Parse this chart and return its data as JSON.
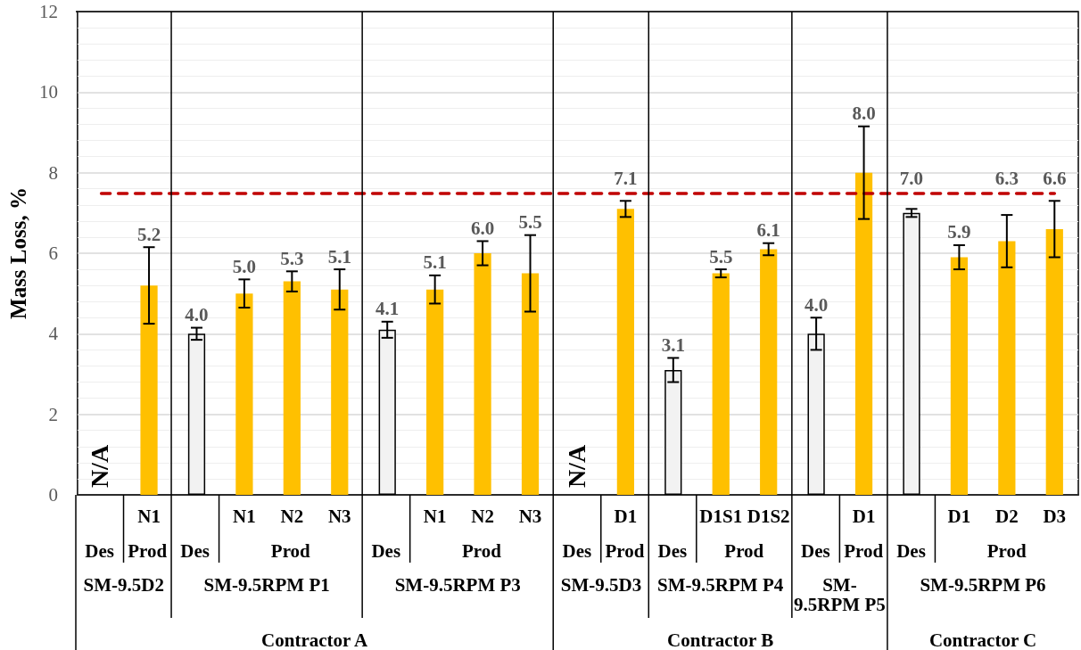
{
  "chart_data": {
    "type": "bar",
    "categories": [
      null,
      "N1",
      null,
      "N1",
      "N2",
      "N3",
      null,
      "N1",
      "N2",
      "N3",
      null,
      "D1",
      null,
      "D1S1",
      "D1S2",
      null,
      "D1",
      null,
      "D1",
      "D2",
      "D3"
    ],
    "values": [
      null,
      5.2,
      4.0,
      5.0,
      5.3,
      5.1,
      4.1,
      5.1,
      6.0,
      5.5,
      null,
      7.1,
      3.1,
      5.5,
      6.1,
      4.0,
      8.0,
      7.0,
      5.9,
      6.3,
      6.6
    ],
    "colors": [
      "#f2f2f2",
      "#ffc000",
      "#f2f2f2",
      "#ffc000",
      "#ffc000",
      "#ffc000",
      "#f2f2f2",
      "#ffc000",
      "#ffc000",
      "#ffc000",
      "#f2f2f2",
      "#ffc000",
      "#f2f2f2",
      "#ffc000",
      "#ffc000",
      "#f2f2f2",
      "#ffc000",
      "#f2f2f2",
      "#ffc000",
      "#ffc000",
      "#ffc000"
    ],
    "errors": [
      null,
      0.95,
      0.15,
      0.35,
      0.25,
      0.5,
      0.2,
      0.35,
      0.3,
      0.95,
      null,
      0.2,
      0.3,
      0.1,
      0.15,
      0.4,
      1.15,
      0.1,
      0.3,
      0.65,
      0.7
    ],
    "value_labels": [
      null,
      "5.2",
      "4.0",
      "5.0",
      "5.3",
      "5.1",
      "4.1",
      "5.1",
      "6.0",
      "5.5",
      null,
      "7.1",
      "3.1",
      "5.5",
      "6.1",
      "4.0",
      "8.0",
      "7.0",
      "5.9",
      "6.3",
      "6.6"
    ],
    "ylabel": "Mass Loss, %",
    "ylim": [
      0,
      12
    ],
    "yticks": [
      0,
      2,
      4,
      6,
      8,
      10,
      12
    ],
    "grid": "y",
    "ref_lines": [
      {
        "axis": "y",
        "value": 7.5,
        "color": "#c00000",
        "line_style": "dashed"
      }
    ],
    "annotations": [
      "N/A",
      "N/A",
      "Des",
      "Prod",
      "Des",
      "Prod",
      "Des",
      "Prod",
      "Des",
      "Prod",
      "Des",
      "Prod",
      "Des",
      "Prod",
      "Des",
      "Prod",
      "SM-9.5D2",
      "SM-9.5RPM P1",
      "SM-9.5RPM P3",
      "SM-9.5D3",
      "SM-9.5RPM P4",
      "SM-9.5RPM P5",
      "SM-9.5RPM P6",
      "Contractor A",
      "Contractor B",
      "Contractor C"
    ]
  }
}
